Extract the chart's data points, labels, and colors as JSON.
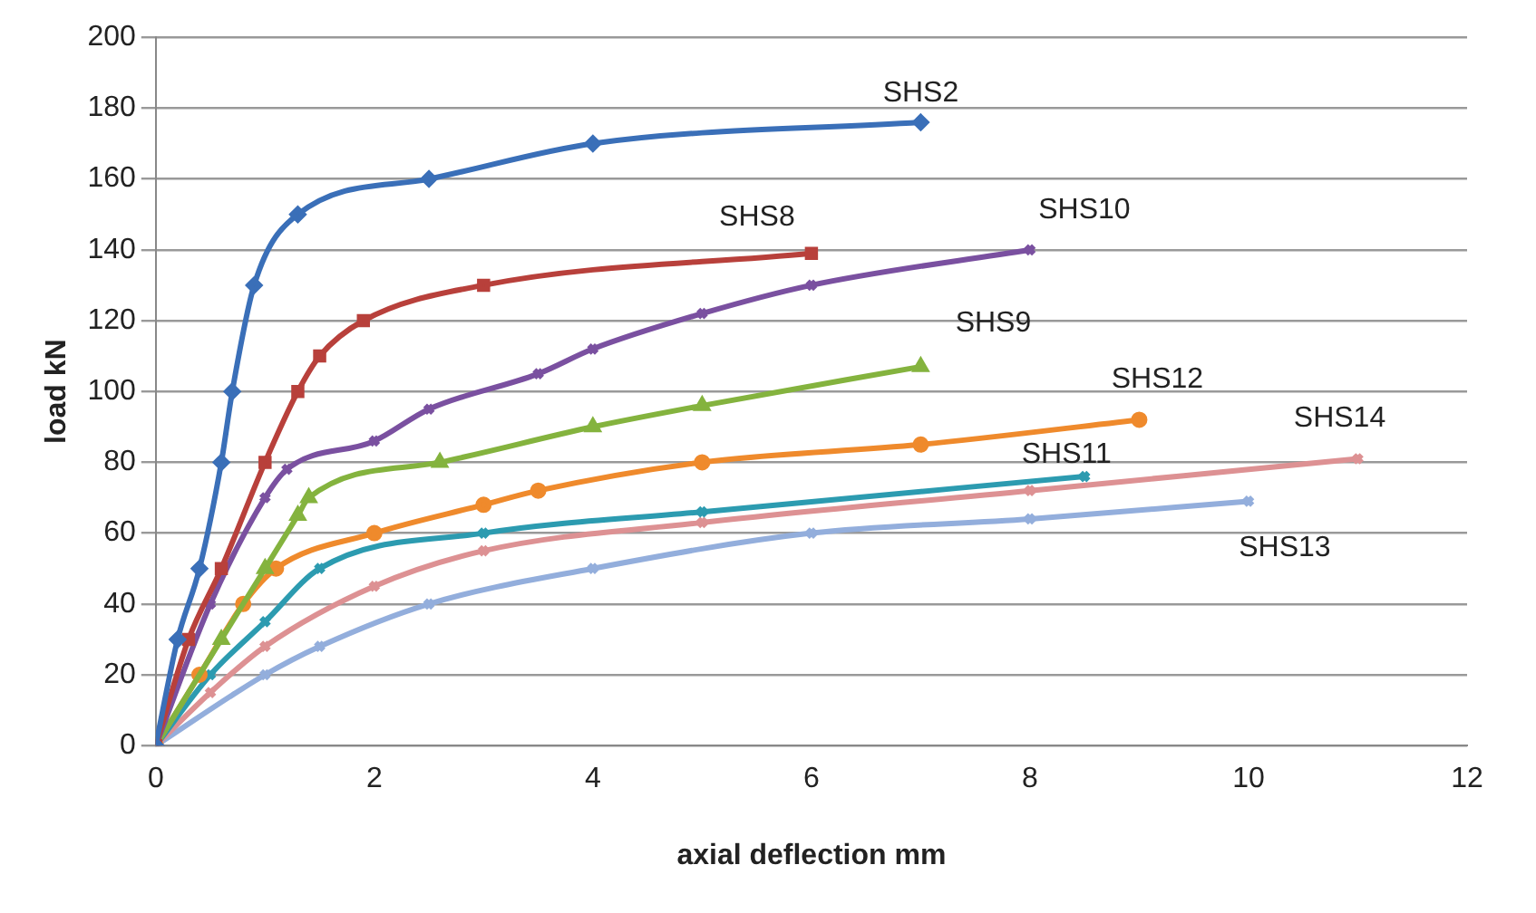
{
  "chart_data": {
    "type": "line",
    "xlabel": "axial deflection mm",
    "ylabel": "load kN",
    "xlim": [
      0,
      12
    ],
    "xticks": [
      0,
      2,
      4,
      6,
      8,
      10,
      12
    ],
    "ylim": [
      0,
      200
    ],
    "yticks": [
      0,
      20,
      40,
      60,
      80,
      100,
      120,
      140,
      160,
      180,
      200
    ],
    "grid": "y",
    "legend": false,
    "line_style": "solid",
    "series": [
      {
        "name": "SHS2",
        "color": "#3a6fb8",
        "marker": "diamond",
        "x": [
          0,
          0.2,
          0.4,
          0.6,
          0.7,
          0.9,
          1.3,
          2.5,
          4,
          7
        ],
        "values": [
          0,
          30,
          50,
          80,
          100,
          130,
          150,
          160,
          170,
          176
        ]
      },
      {
        "name": "SHS8",
        "color": "#b8403b",
        "marker": "square",
        "x": [
          0,
          0.3,
          0.6,
          1,
          1.3,
          1.5,
          1.9,
          3,
          6
        ],
        "values": [
          0,
          30,
          50,
          80,
          100,
          110,
          120,
          130,
          139
        ]
      },
      {
        "name": "SHS10",
        "color": "#7a50a0",
        "marker": "cross",
        "x": [
          0,
          0.5,
          1,
          1.2,
          2,
          2.5,
          3.5,
          4,
          5,
          6,
          8
        ],
        "values": [
          0,
          40,
          70,
          78,
          86,
          95,
          105,
          112,
          122,
          130,
          140
        ]
      },
      {
        "name": "SHS9",
        "color": "#84b33e",
        "marker": "triangle",
        "x": [
          0,
          0.6,
          1,
          1.3,
          1.4,
          2.6,
          4,
          5,
          7
        ],
        "values": [
          0,
          30,
          50,
          65,
          70,
          80,
          90,
          96,
          107
        ]
      },
      {
        "name": "SHS12",
        "color": "#ef8a2c",
        "marker": "circle",
        "x": [
          0,
          0.4,
          0.8,
          1.1,
          2,
          3,
          3.5,
          5,
          7,
          9
        ],
        "values": [
          0,
          20,
          40,
          50,
          60,
          68,
          72,
          80,
          85,
          92
        ]
      },
      {
        "name": "SHS11",
        "color": "#2c9bb0",
        "marker": "cross",
        "x": [
          0,
          0.5,
          1,
          1.5,
          3,
          5,
          8.5
        ],
        "values": [
          0,
          20,
          35,
          50,
          60,
          66,
          76
        ]
      },
      {
        "name": "SHS14",
        "color": "#dd9193",
        "marker": "cross",
        "x": [
          0,
          0.5,
          1,
          2,
          3,
          5,
          8,
          11
        ],
        "values": [
          0,
          15,
          28,
          45,
          55,
          63,
          72,
          81
        ]
      },
      {
        "name": "SHS13",
        "color": "#93aedc",
        "marker": "cross",
        "x": [
          0,
          1,
          1.5,
          2.5,
          4,
          6,
          8,
          10
        ],
        "values": [
          0,
          20,
          28,
          40,
          50,
          60,
          64,
          69
        ]
      }
    ]
  }
}
